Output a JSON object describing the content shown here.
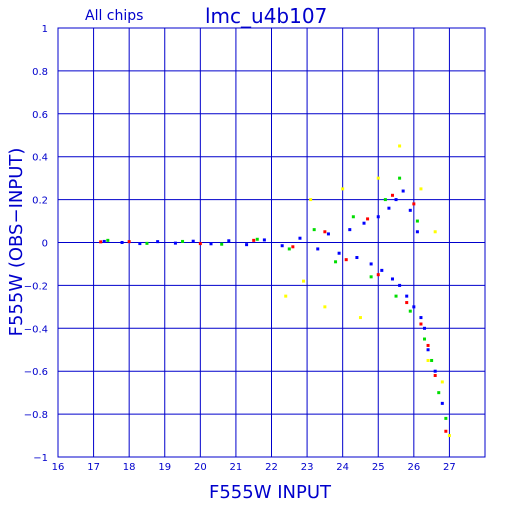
{
  "header": {
    "scope_label": "All chips",
    "dataset_title": "lmc_u4b107"
  },
  "chart_data": {
    "type": "scatter",
    "title": "lmc_u4b107",
    "subtitle": "All chips",
    "xlabel": "F555W INPUT",
    "ylabel": "F555W (OBS−INPUT)",
    "xlim": [
      16,
      28
    ],
    "ylim": [
      -1,
      1
    ],
    "x_ticks": [
      16,
      17,
      18,
      19,
      20,
      21,
      22,
      23,
      24,
      25,
      26,
      27
    ],
    "y_ticks": [
      -1,
      -0.8,
      -0.6,
      -0.4,
      -0.2,
      0,
      0.2,
      0.4,
      0.6,
      0.8,
      1
    ],
    "y_tick_labels": [
      "−1",
      "−0.8",
      "−0.6",
      "−0.4",
      "−0.2",
      "0",
      "0.2",
      "0.4",
      "0.6",
      "0.8",
      "1"
    ],
    "grid": true,
    "marker": "small square",
    "series": [
      {
        "color": "#0000ff",
        "points": [
          [
            17.3,
            0.005
          ],
          [
            17.8,
            0.0
          ],
          [
            18.3,
            -0.005
          ],
          [
            18.8,
            0.004
          ],
          [
            19.3,
            -0.003
          ],
          [
            19.8,
            0.006
          ],
          [
            20.3,
            -0.006
          ],
          [
            20.8,
            0.008
          ],
          [
            21.3,
            -0.01
          ],
          [
            21.8,
            0.012
          ],
          [
            22.3,
            -0.015
          ],
          [
            22.8,
            0.02
          ],
          [
            23.3,
            -0.03
          ],
          [
            23.6,
            0.04
          ],
          [
            23.9,
            -0.05
          ],
          [
            24.2,
            0.06
          ],
          [
            24.4,
            -0.07
          ],
          [
            24.6,
            0.09
          ],
          [
            24.8,
            -0.1
          ],
          [
            25.0,
            0.12
          ],
          [
            25.1,
            -0.13
          ],
          [
            25.3,
            0.16
          ],
          [
            25.4,
            -0.17
          ],
          [
            25.5,
            0.2
          ],
          [
            25.6,
            -0.2
          ],
          [
            25.7,
            0.24
          ],
          [
            25.8,
            -0.25
          ],
          [
            25.9,
            0.15
          ],
          [
            26.0,
            -0.3
          ],
          [
            26.1,
            0.05
          ],
          [
            26.2,
            -0.35
          ],
          [
            26.3,
            -0.4
          ],
          [
            26.4,
            -0.5
          ],
          [
            26.6,
            -0.6
          ],
          [
            26.8,
            -0.75
          ]
        ]
      },
      {
        "color": "#00dd00",
        "points": [
          [
            17.4,
            0.01
          ],
          [
            18.5,
            -0.004
          ],
          [
            19.5,
            0.005
          ],
          [
            20.6,
            -0.008
          ],
          [
            21.6,
            0.015
          ],
          [
            22.5,
            -0.03
          ],
          [
            23.2,
            0.06
          ],
          [
            23.8,
            -0.09
          ],
          [
            24.3,
            0.12
          ],
          [
            24.8,
            -0.16
          ],
          [
            25.2,
            0.2
          ],
          [
            25.5,
            -0.25
          ],
          [
            25.6,
            0.3
          ],
          [
            25.9,
            -0.32
          ],
          [
            26.1,
            0.1
          ],
          [
            26.3,
            -0.45
          ],
          [
            26.5,
            -0.55
          ],
          [
            26.7,
            -0.7
          ],
          [
            26.9,
            -0.82
          ]
        ]
      },
      {
        "color": "#ff0000",
        "points": [
          [
            17.2,
            0.003
          ],
          [
            18.0,
            0.004
          ],
          [
            20.0,
            -0.005
          ],
          [
            21.5,
            0.01
          ],
          [
            22.6,
            -0.02
          ],
          [
            23.5,
            0.05
          ],
          [
            24.1,
            -0.08
          ],
          [
            24.7,
            0.11
          ],
          [
            25.0,
            -0.15
          ],
          [
            25.4,
            0.22
          ],
          [
            25.8,
            -0.28
          ],
          [
            26.0,
            0.18
          ],
          [
            26.2,
            -0.38
          ],
          [
            26.4,
            -0.48
          ],
          [
            26.6,
            -0.62
          ],
          [
            26.9,
            -0.88
          ]
        ]
      },
      {
        "color": "#ffff00",
        "points": [
          [
            22.4,
            -0.25
          ],
          [
            22.9,
            -0.18
          ],
          [
            23.1,
            0.2
          ],
          [
            23.5,
            -0.3
          ],
          [
            24.0,
            0.25
          ],
          [
            24.5,
            -0.35
          ],
          [
            25.0,
            0.3
          ],
          [
            25.6,
            0.45
          ],
          [
            26.2,
            0.25
          ],
          [
            26.4,
            -0.55
          ],
          [
            26.6,
            0.05
          ],
          [
            26.8,
            -0.65
          ],
          [
            27.0,
            -0.9
          ]
        ]
      }
    ]
  }
}
